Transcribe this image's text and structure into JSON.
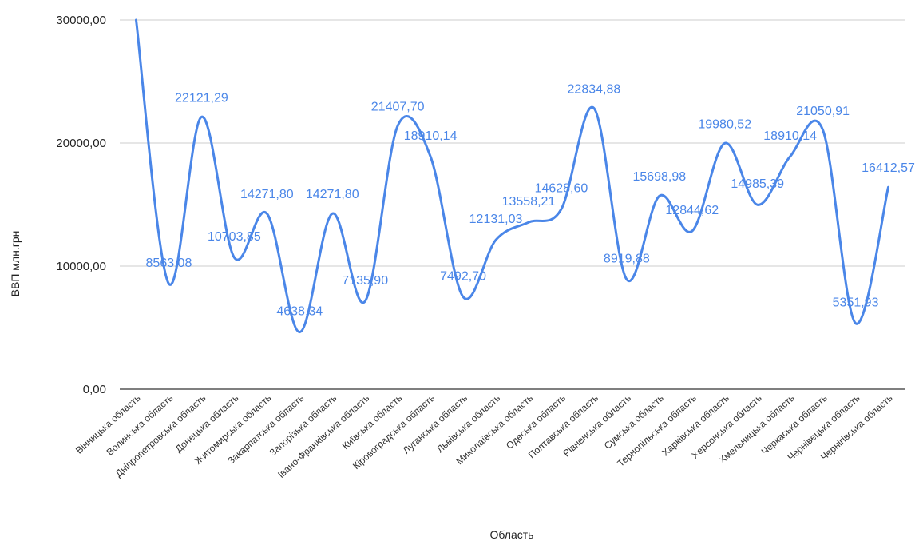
{
  "chart_data": {
    "type": "line",
    "title": "",
    "xlabel": "Область",
    "ylabel": "ВВП млн.грн",
    "ylim": [
      0,
      30000
    ],
    "y_ticks": [
      "0,00",
      "10000,00",
      "20000,00",
      "30000,00"
    ],
    "y_tick_values": [
      0,
      10000,
      20000,
      30000
    ],
    "grid": true,
    "smooth": true,
    "line_color": "#4a86e8",
    "categories": [
      "Вінницька область",
      "Волинська область",
      "Дніпропетровська область",
      "Донецька область",
      "Житомирська область",
      "Закарпатська область",
      "Запорізька область",
      "Івано-Франківська область",
      "Київська область",
      "Кіровоградська область",
      "Луганська область",
      "Львівська область",
      "Миколаївська область",
      "Одеська область",
      "Полтавська область",
      "Рівненська область",
      "Сумська область",
      "Тернопільська область",
      "Харківська область",
      "Херсонська область",
      "Хмельницька область",
      "Черкаська область",
      "Чернівецька область",
      "Чернігівська область"
    ],
    "values": [
      30000,
      8563.08,
      22121.29,
      10703.85,
      14271.8,
      4638.34,
      14271.8,
      7135.9,
      21407.7,
      18910.14,
      7492.7,
      12131.03,
      13558.21,
      14628.6,
      22834.88,
      8919.88,
      15698.98,
      12844.62,
      19980.52,
      14985.39,
      18910.14,
      21050.91,
      5351.93,
      16412.57
    ],
    "data_labels": [
      "",
      "8563,08",
      "22121,29",
      "10703,85",
      "14271,80",
      "4638,34",
      "14271,80",
      "7135,90",
      "21407,70",
      "18910,14",
      "7492,70",
      "12131,03",
      "13558,21",
      "14628,60",
      "22834,88",
      "8919,88",
      "15698,98",
      "12844,62",
      "19980,52",
      "14985,39",
      "18910,14",
      "21050,91",
      "5351,93",
      "16412,57"
    ]
  }
}
